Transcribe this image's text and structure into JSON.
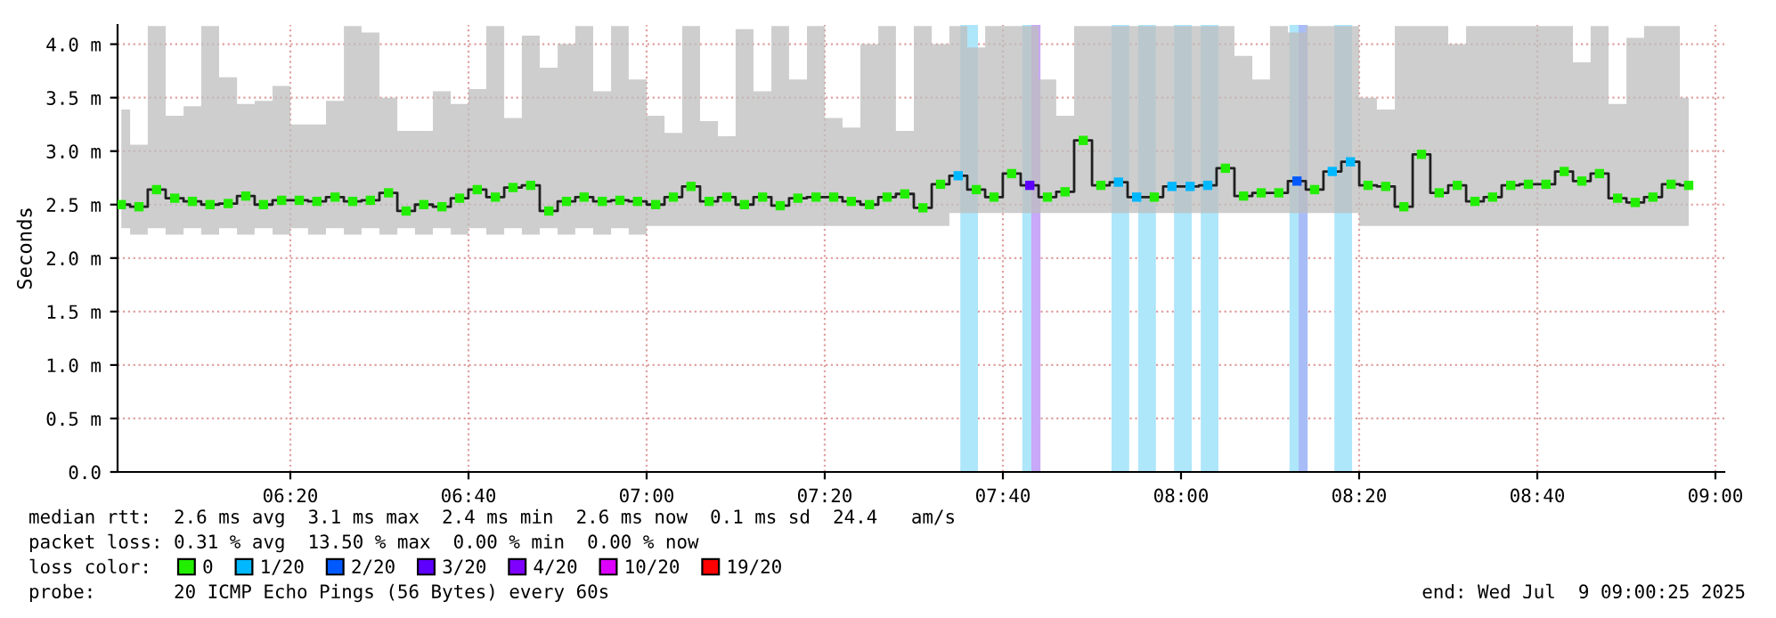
{
  "chart_data": {
    "type": "step",
    "ylabel": "Seconds",
    "xlim": [
      6.01,
      9.0167
    ],
    "xticks": [
      {
        "value": 6.3333,
        "label": "06:20"
      },
      {
        "value": 6.6667,
        "label": "06:40"
      },
      {
        "value": 7.0,
        "label": "07:00"
      },
      {
        "value": 7.3333,
        "label": "07:20"
      },
      {
        "value": 7.6667,
        "label": "07:40"
      },
      {
        "value": 8.0,
        "label": "08:00"
      },
      {
        "value": 8.3333,
        "label": "08:20"
      },
      {
        "value": 8.6667,
        "label": "08:40"
      },
      {
        "value": 9.0,
        "label": "09:00"
      }
    ],
    "ylim": [
      0,
      4.18
    ],
    "yticks": [
      {
        "value": 0,
        "label": "0.0"
      },
      {
        "value": 0.5,
        "label": "0.5 m"
      },
      {
        "value": 1.0,
        "label": "1.0 m"
      },
      {
        "value": 1.5,
        "label": "1.5 m"
      },
      {
        "value": 2.0,
        "label": "2.0 m"
      },
      {
        "value": 2.5,
        "label": "2.5 m"
      },
      {
        "value": 3.0,
        "label": "3.0 m"
      },
      {
        "value": 3.5,
        "label": "3.5 m"
      },
      {
        "value": 4.0,
        "label": "4.0 m"
      }
    ],
    "grid": true,
    "legend": "bottom",
    "legend_title": "loss color:",
    "x": [
      6.017,
      6.05,
      6.083,
      6.117,
      6.15,
      6.183,
      6.217,
      6.25,
      6.283,
      6.317,
      6.35,
      6.383,
      6.417,
      6.45,
      6.483,
      6.517,
      6.55,
      6.583,
      6.617,
      6.65,
      6.683,
      6.717,
      6.75,
      6.783,
      6.817,
      6.85,
      6.883,
      6.917,
      6.95,
      6.983,
      7.017,
      7.05,
      7.083,
      7.117,
      7.15,
      7.183,
      7.217,
      7.25,
      7.283,
      7.317,
      7.35,
      7.383,
      7.417,
      7.45,
      7.483,
      7.517,
      7.55,
      7.583,
      7.617,
      7.65,
      7.683,
      7.717,
      7.75,
      7.783,
      7.817,
      7.85,
      7.883,
      7.917,
      7.95,
      7.983,
      8.017,
      8.05,
      8.083,
      8.117,
      8.15,
      8.183,
      8.217,
      8.25,
      8.283,
      8.317,
      8.35,
      8.383,
      8.417,
      8.45,
      8.483,
      8.517,
      8.55,
      8.583,
      8.617,
      8.65,
      8.683,
      8.717,
      8.75,
      8.783,
      8.817,
      8.85,
      8.883,
      8.917,
      8.95
    ],
    "series": [
      {
        "color": "#202020",
        "values": [
          2.5,
          2.48,
          2.64,
          2.56,
          2.53,
          2.5,
          2.51,
          2.58,
          2.5,
          2.54,
          2.54,
          2.53,
          2.57,
          2.53,
          2.54,
          2.61,
          2.44,
          2.5,
          2.48,
          2.56,
          2.64,
          2.57,
          2.66,
          2.68,
          2.44,
          2.53,
          2.57,
          2.53,
          2.54,
          2.53,
          2.5,
          2.57,
          2.67,
          2.53,
          2.57,
          2.5,
          2.57,
          2.49,
          2.56,
          2.57,
          2.57,
          2.53,
          2.5,
          2.57,
          2.6,
          2.47,
          2.69,
          2.77,
          2.64,
          2.57,
          2.79,
          2.68,
          2.57,
          2.62,
          3.1,
          2.68,
          2.71,
          2.57,
          2.57,
          2.67,
          2.67,
          2.68,
          2.84,
          2.58,
          2.61,
          2.61,
          2.72,
          2.64,
          2.81,
          2.9,
          2.68,
          2.67,
          2.48,
          2.97,
          2.61,
          2.68,
          2.53,
          2.57,
          2.68,
          2.69,
          2.69,
          2.81,
          2.72,
          2.79,
          2.56,
          2.52,
          2.57,
          2.69,
          2.68
        ],
        "lower": [
          2.28,
          2.22,
          2.28,
          2.22,
          2.28,
          2.22,
          2.28,
          2.22,
          2.28,
          2.22,
          2.28,
          2.22,
          2.28,
          2.22,
          2.28,
          2.22,
          2.28,
          2.22,
          2.28,
          2.22,
          2.28,
          2.22,
          2.28,
          2.22,
          2.28,
          2.22,
          2.28,
          2.22,
          2.28,
          2.22,
          2.3,
          2.3,
          2.3,
          2.3,
          2.3,
          2.3,
          2.3,
          2.3,
          2.3,
          2.3,
          2.3,
          2.3,
          2.3,
          2.3,
          2.3,
          2.3,
          2.3,
          2.42,
          2.42,
          2.42,
          2.42,
          2.42,
          2.42,
          2.42,
          2.42,
          2.42,
          2.42,
          2.42,
          2.42,
          2.42,
          2.42,
          2.42,
          2.42,
          2.42,
          2.42,
          2.42,
          2.42,
          2.42,
          2.42,
          2.42,
          2.3,
          2.3,
          2.3,
          2.3,
          2.3,
          2.3,
          2.3,
          2.3,
          2.3,
          2.3,
          2.3,
          2.3,
          2.3,
          2.3,
          2.3,
          2.3,
          2.3,
          2.3,
          2.3
        ],
        "upper": [
          3.39,
          3.06,
          4.17,
          3.33,
          3.42,
          4.17,
          3.69,
          3.44,
          3.47,
          3.61,
          3.25,
          3.25,
          3.47,
          4.17,
          4.11,
          3.5,
          3.19,
          3.19,
          3.56,
          3.44,
          3.58,
          4.17,
          3.31,
          4.08,
          3.78,
          4.0,
          4.17,
          3.56,
          4.17,
          3.67,
          3.33,
          3.17,
          4.17,
          3.28,
          3.14,
          4.14,
          3.56,
          4.17,
          3.67,
          4.17,
          3.31,
          3.22,
          4.0,
          4.17,
          3.19,
          4.17,
          4.0,
          4.17,
          3.97,
          4.17,
          4.17,
          4.17,
          3.67,
          3.33,
          4.17,
          4.17,
          4.17,
          4.17,
          4.17,
          4.17,
          4.17,
          4.17,
          4.17,
          3.89,
          3.67,
          4.17,
          4.11,
          4.17,
          4.17,
          4.17,
          3.5,
          3.39,
          4.17,
          4.17,
          4.17,
          4.0,
          4.17,
          4.17,
          4.17,
          4.17,
          4.17,
          4.17,
          3.83,
          4.17,
          3.44,
          4.06,
          4.17,
          4.17,
          3.5
        ]
      },
      {
        "type": "scatter",
        "marker": "square",
        "name": "0",
        "color": "#22ee00",
        "values": [
          2.5,
          2.48,
          2.64,
          2.56,
          2.53,
          2.5,
          2.51,
          2.58,
          2.5,
          2.54,
          2.54,
          2.53,
          2.57,
          2.53,
          2.54,
          2.61,
          2.44,
          2.5,
          2.48,
          2.56,
          2.64,
          2.57,
          2.66,
          2.68,
          2.44,
          2.53,
          2.57,
          2.53,
          2.54,
          2.53,
          2.5,
          2.57,
          2.67,
          2.53,
          2.57,
          2.5,
          2.57,
          2.49,
          2.56,
          2.57,
          2.57,
          2.53,
          2.5,
          2.57,
          2.6,
          2.47,
          2.69,
          null,
          2.64,
          2.57,
          2.79,
          null,
          2.57,
          2.62,
          3.1,
          2.68,
          null,
          null,
          2.57,
          null,
          null,
          null,
          2.84,
          2.58,
          2.61,
          2.61,
          null,
          2.64,
          null,
          null,
          2.68,
          2.67,
          2.48,
          2.97,
          2.61,
          2.68,
          2.53,
          2.57,
          2.68,
          2.69,
          2.69,
          2.81,
          2.72,
          2.79,
          2.56,
          2.52,
          2.57,
          2.69,
          2.68
        ]
      },
      {
        "type": "scatter",
        "marker": "square",
        "name": "1/20",
        "color": "#00b8ff",
        "x": [
          7.583,
          7.883,
          7.917,
          7.983,
          8.017,
          8.05,
          8.283,
          8.317
        ],
        "values": [
          2.77,
          2.71,
          2.57,
          2.67,
          2.67,
          2.68,
          2.81,
          2.9
        ]
      },
      {
        "type": "scatter",
        "marker": "square",
        "name": "2/20",
        "color": "#0059ff",
        "x": [
          8.217
        ],
        "values": [
          2.72
        ]
      },
      {
        "type": "scatter",
        "marker": "square",
        "name": "3/20",
        "color": "#5e00ff",
        "x": [
          7.717
        ],
        "values": [
          2.68
        ]
      },
      {
        "type": "scatter",
        "name": "4/20",
        "color": "#7e00ff",
        "values": [
          null,
          null,
          null,
          null,
          null,
          null,
          null,
          null,
          null,
          null,
          null,
          null,
          null,
          null,
          null,
          null,
          null,
          null,
          null,
          null,
          null,
          null,
          null,
          null,
          null,
          null,
          null,
          null,
          null,
          null,
          null,
          null,
          null,
          null,
          null,
          null,
          null,
          null,
          null,
          null,
          null,
          null,
          null,
          null,
          null,
          null,
          null,
          null,
          null,
          null,
          null,
          null,
          null,
          null,
          null,
          null,
          null,
          null,
          null,
          null,
          null,
          null,
          null,
          null,
          null,
          null,
          null,
          null,
          null,
          null,
          null,
          null,
          null,
          null,
          null,
          null,
          null,
          null,
          null,
          null,
          null,
          null,
          null,
          null,
          null,
          null,
          null,
          null,
          null
        ]
      },
      {
        "type": "scatter",
        "name": "10/20",
        "color": "#dd00ff",
        "values": [
          null,
          null,
          null,
          null,
          null,
          null,
          null,
          null,
          null,
          null,
          null,
          null,
          null,
          null,
          null,
          null,
          null,
          null,
          null,
          null,
          null,
          null,
          null,
          null,
          null,
          null,
          null,
          null,
          null,
          null,
          null,
          null,
          null,
          null,
          null,
          null,
          null,
          null,
          null,
          null,
          null,
          null,
          null,
          null,
          null,
          null,
          null,
          null,
          null,
          null,
          null,
          null,
          null,
          null,
          null,
          null,
          null,
          null,
          null,
          null,
          null,
          null,
          null,
          null,
          null,
          null,
          null,
          null,
          null,
          null,
          null,
          null,
          null,
          null,
          null,
          null,
          null,
          null,
          null,
          null,
          null,
          null,
          null,
          null,
          null,
          null,
          null,
          null,
          null
        ]
      },
      {
        "type": "scatter",
        "name": "19/20",
        "color": "#ff0000",
        "values": [
          null,
          null,
          null,
          null,
          null,
          null,
          null,
          null,
          null,
          null,
          null,
          null,
          null,
          null,
          null,
          null,
          null,
          null,
          null,
          null,
          null,
          null,
          null,
          null,
          null,
          null,
          null,
          null,
          null,
          null,
          null,
          null,
          null,
          null,
          null,
          null,
          null,
          null,
          null,
          null,
          null,
          null,
          null,
          null,
          null,
          null,
          null,
          null,
          null,
          null,
          null,
          null,
          null,
          null,
          null,
          null,
          null,
          null,
          null,
          null,
          null,
          null,
          null,
          null,
          null,
          null,
          null,
          null,
          null,
          null,
          null,
          null,
          null,
          null,
          null,
          null,
          null,
          null,
          null,
          null,
          null,
          null,
          null,
          null,
          null,
          null,
          null,
          null,
          null
        ]
      }
    ],
    "bands": [
      {
        "axis": "x",
        "from": 7.587,
        "to": 7.62,
        "color": "#aee6fa"
      },
      {
        "axis": "x",
        "from": 7.703,
        "to": 7.72,
        "color": "#aee6fa"
      },
      {
        "axis": "x",
        "from": 7.72,
        "to": 7.737,
        "color": "#c8a8f8"
      },
      {
        "axis": "x",
        "from": 7.87,
        "to": 7.903,
        "color": "#aee6fa"
      },
      {
        "axis": "x",
        "from": 7.92,
        "to": 7.953,
        "color": "#aee6fa"
      },
      {
        "axis": "x",
        "from": 7.987,
        "to": 8.02,
        "color": "#aee6fa"
      },
      {
        "axis": "x",
        "from": 8.037,
        "to": 8.07,
        "color": "#aee6fa"
      },
      {
        "axis": "x",
        "from": 8.203,
        "to": 8.22,
        "color": "#aee6fa"
      },
      {
        "axis": "x",
        "from": 8.22,
        "to": 8.237,
        "color": "#a8bdf8"
      },
      {
        "axis": "x",
        "from": 8.287,
        "to": 8.32,
        "color": "#aee6fa"
      }
    ],
    "annotations": [
      "median rtt:  2.6 ms avg  3.1 ms max  2.4 ms min  2.6 ms now  0.1 ms sd  24.4   am/s",
      "packet loss: 0.31 % avg  13.50 % max  0.00 % min  0.00 % now",
      "probe:       20 ICMP Echo Pings (56 Bytes) every 60s",
      "end: Wed Jul  9 09:00:25 2025"
    ]
  }
}
